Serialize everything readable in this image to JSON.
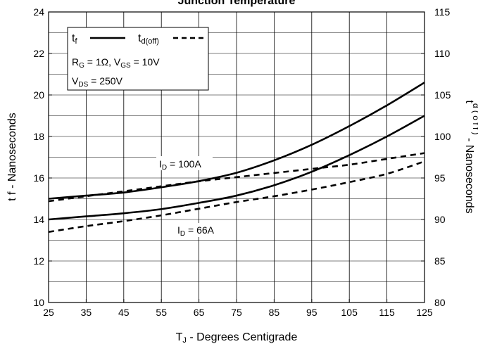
{
  "chart_data": {
    "type": "line",
    "title": "Junction Temperature",
    "xlabel_main": "T",
    "xlabel_sub": "J",
    "xlabel_rest": " - Degrees Centigrade",
    "ylabel_left": "t f - Nanoseconds",
    "ylabel_right_main": "t",
    "ylabel_right_sub": "d ( o f f )",
    "ylabel_right_rest": " - Nanoseconds",
    "xlim": [
      25,
      125
    ],
    "ylim_left": [
      10,
      24
    ],
    "ylim_right": [
      80,
      115
    ],
    "x_ticks": [
      25,
      35,
      45,
      55,
      65,
      75,
      85,
      95,
      105,
      115,
      125
    ],
    "y_left_ticks": [
      10,
      12,
      14,
      16,
      18,
      20,
      22,
      24
    ],
    "y_right_ticks": [
      80,
      85,
      90,
      95,
      100,
      105,
      110,
      115
    ],
    "grid": true,
    "legend": {
      "tf_main": "t",
      "tf_sub": "f",
      "td_main": "t",
      "td_sub": "d(off)",
      "cond1_r": "R",
      "cond1_rsub": "G",
      "cond1_mid": " = 1Ω,  V",
      "cond1_vsub": "GS",
      "cond1_end": " = 10V",
      "cond2_v": "V",
      "cond2_vsub": "DS",
      "cond2_end": " = 250V",
      "placement": "top-left"
    },
    "annotations": {
      "id100_pre": "I",
      "id100_sub": "D",
      "id100_post": " = 100A",
      "id66_pre": "I",
      "id66_sub": "D",
      "id66_post": " = 66A"
    },
    "series": [
      {
        "id": "tf_100",
        "axis": "left",
        "style": "solid",
        "x": [
          25,
          35,
          45,
          55,
          65,
          75,
          85,
          95,
          105,
          115,
          125
        ],
        "y": [
          15.0,
          15.15,
          15.3,
          15.55,
          15.85,
          16.25,
          16.85,
          17.6,
          18.5,
          19.5,
          20.6
        ]
      },
      {
        "id": "tf_66",
        "axis": "left",
        "style": "solid",
        "x": [
          25,
          35,
          45,
          55,
          65,
          75,
          85,
          95,
          105,
          115,
          125
        ],
        "y": [
          14.0,
          14.15,
          14.3,
          14.5,
          14.8,
          15.15,
          15.65,
          16.3,
          17.1,
          18.0,
          19.0
        ]
      },
      {
        "id": "td_100",
        "axis": "right",
        "style": "dashed",
        "x": [
          25,
          35,
          45,
          55,
          65,
          75,
          85,
          95,
          105,
          115,
          125
        ],
        "y": [
          92.2,
          92.8,
          93.4,
          94.0,
          94.6,
          95.1,
          95.6,
          96.1,
          96.6,
          97.3,
          98.0
        ]
      },
      {
        "id": "td_66",
        "axis": "right",
        "style": "dashed",
        "x": [
          25,
          35,
          45,
          55,
          65,
          75,
          85,
          95,
          105,
          115,
          125
        ],
        "y": [
          88.5,
          89.2,
          89.8,
          90.5,
          91.3,
          92.1,
          92.8,
          93.6,
          94.5,
          95.5,
          97.0
        ]
      }
    ]
  }
}
